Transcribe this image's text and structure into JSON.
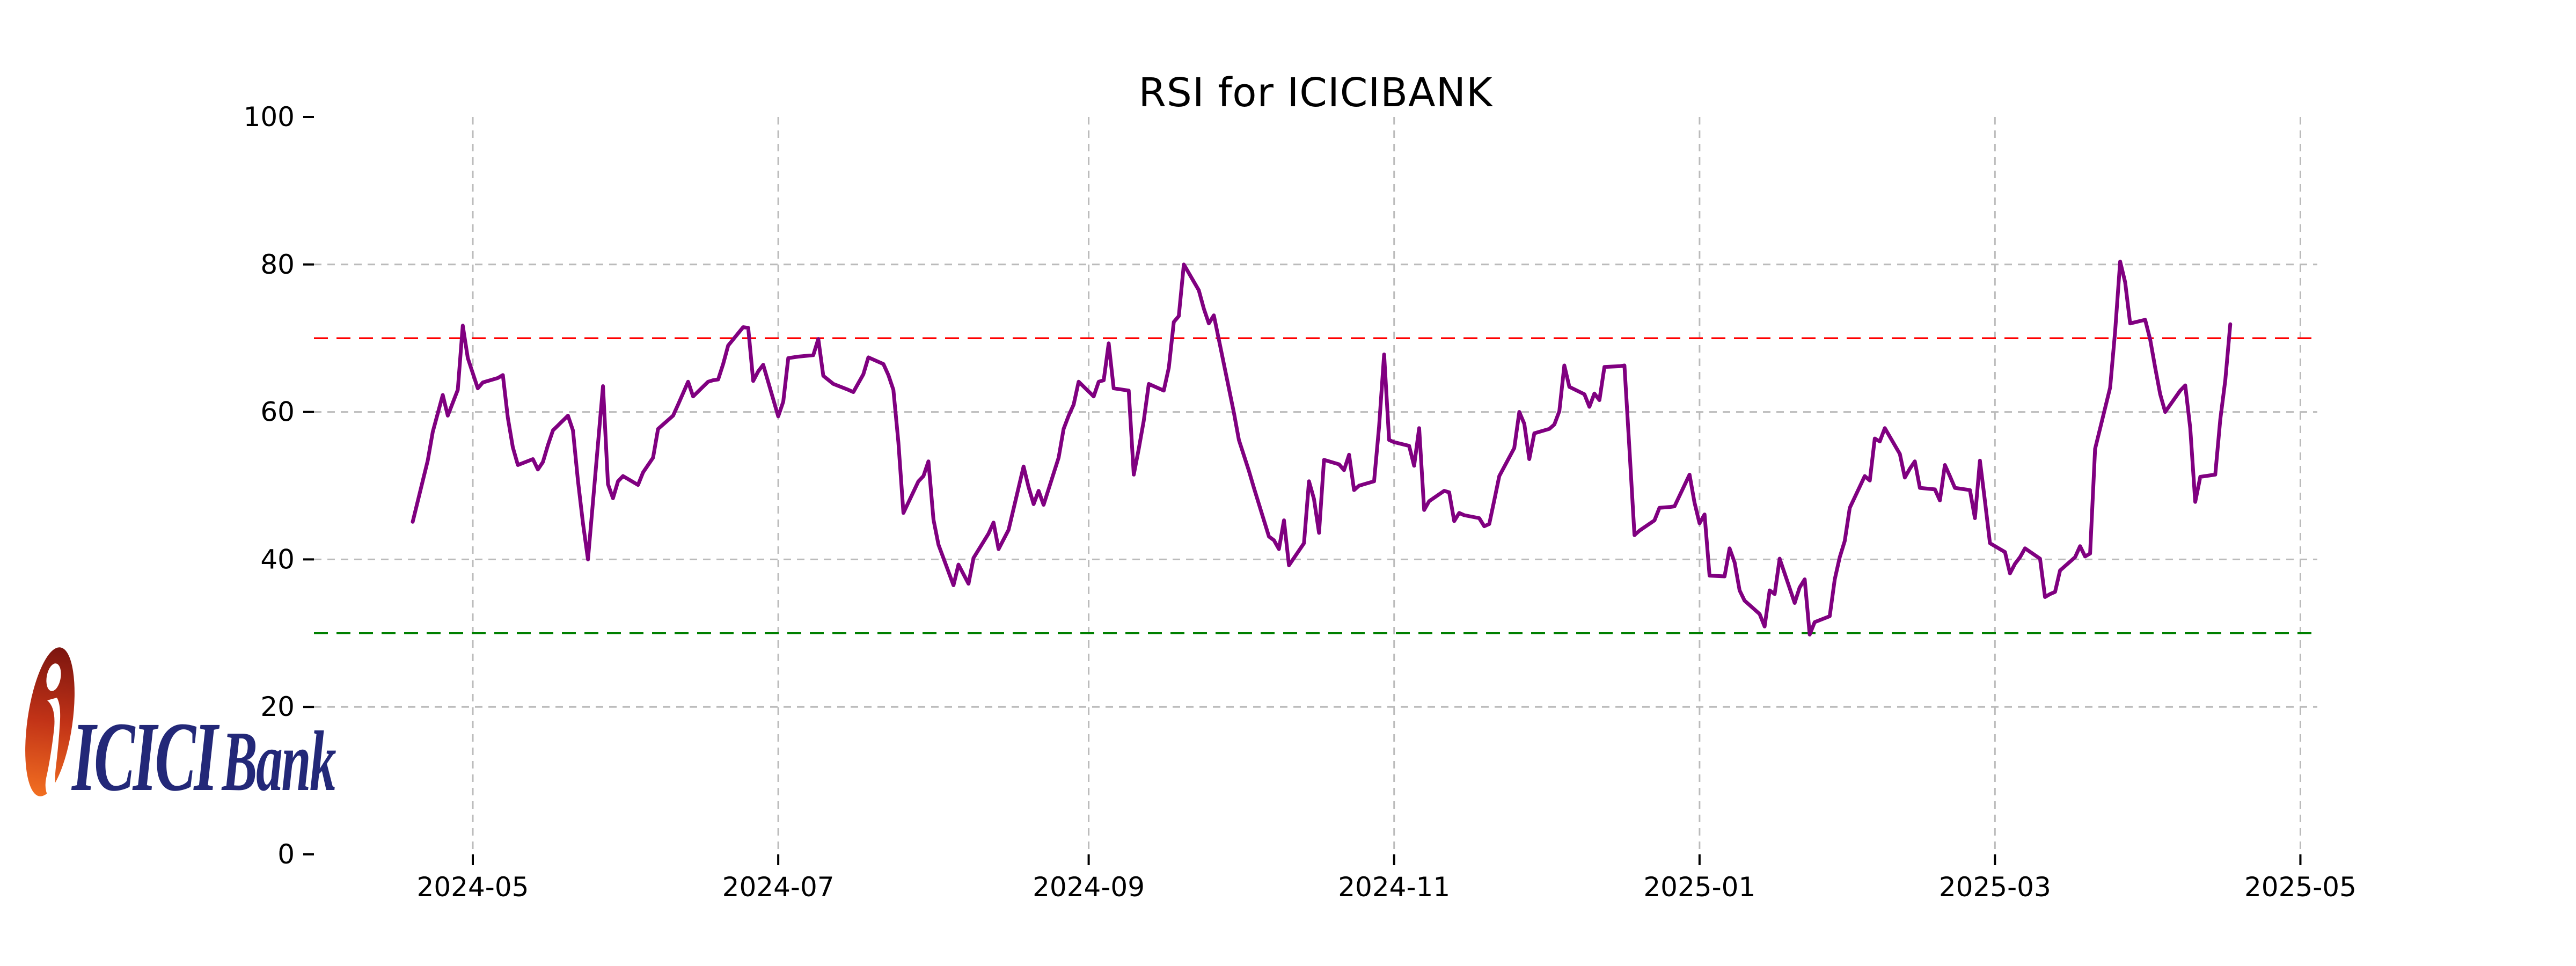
{
  "window": {
    "background": "#ffffff"
  },
  "logo": {
    "brand": "ICICI",
    "product": "Bank",
    "mark_color_top": "#7c150f",
    "mark_color_mid": "#c23317",
    "mark_color_bottom": "#f26f21",
    "text_color": "#232878"
  },
  "chart_data": {
    "type": "line",
    "title": "RSI for ICICIBANK",
    "xlabel": "",
    "ylabel": "",
    "ylim": [
      0,
      100
    ],
    "yticks": [
      0,
      20,
      40,
      60,
      80,
      100
    ],
    "xtick_labels": [
      "2024-05",
      "2024-07",
      "2024-09",
      "2024-11",
      "2025-01",
      "2025-03",
      "2025-05"
    ],
    "xtick_dates": [
      "2024-05-01",
      "2024-07-01",
      "2024-09-01",
      "2024-11-01",
      "2025-01-01",
      "2025-03-01",
      "2025-05-01"
    ],
    "grid": true,
    "gridline_yticks": [
      20,
      40,
      60,
      80
    ],
    "legend": "none",
    "line_color": "#800080",
    "overbought": {
      "value": 70,
      "color": "#ff0000",
      "style": "dashed"
    },
    "oversold": {
      "value": 30,
      "color": "#008000",
      "style": "dashed"
    },
    "gridline_color": "#bbbbbb",
    "series_name": "RSI",
    "points": [
      [
        "2024-04-19",
        45.1
      ],
      [
        "2024-04-22",
        53.4
      ],
      [
        "2024-04-23",
        57.3
      ],
      [
        "2024-04-25",
        62.3
      ],
      [
        "2024-04-26",
        59.5
      ],
      [
        "2024-04-28",
        63.0
      ],
      [
        "2024-04-29",
        71.7
      ],
      [
        "2024-04-30",
        67.3
      ],
      [
        "2024-05-02",
        63.2
      ],
      [
        "2024-05-03",
        64.0
      ],
      [
        "2024-05-06",
        64.6
      ],
      [
        "2024-05-07",
        65.0
      ],
      [
        "2024-05-08",
        59.2
      ],
      [
        "2024-05-09",
        55.2
      ],
      [
        "2024-05-10",
        52.8
      ],
      [
        "2024-05-13",
        53.6
      ],
      [
        "2024-05-14",
        52.2
      ],
      [
        "2024-05-15",
        53.2
      ],
      [
        "2024-05-16",
        55.5
      ],
      [
        "2024-05-17",
        57.5
      ],
      [
        "2024-05-20",
        59.5
      ],
      [
        "2024-05-21",
        57.5
      ],
      [
        "2024-05-22",
        50.7
      ],
      [
        "2024-05-23",
        44.9
      ],
      [
        "2024-05-24",
        40.0
      ],
      [
        "2024-05-27",
        63.5
      ],
      [
        "2024-05-28",
        50.2
      ],
      [
        "2024-05-29",
        48.3
      ],
      [
        "2024-05-30",
        50.6
      ],
      [
        "2024-05-31",
        51.3
      ],
      [
        "2024-06-03",
        50.1
      ],
      [
        "2024-06-04",
        51.8
      ],
      [
        "2024-06-06",
        53.8
      ],
      [
        "2024-06-07",
        57.7
      ],
      [
        "2024-06-10",
        59.5
      ],
      [
        "2024-06-11",
        61.0
      ],
      [
        "2024-06-13",
        64.1
      ],
      [
        "2024-06-14",
        62.1
      ],
      [
        "2024-06-17",
        64.1
      ],
      [
        "2024-06-18",
        64.3
      ],
      [
        "2024-06-19",
        64.4
      ],
      [
        "2024-06-20",
        66.5
      ],
      [
        "2024-06-21",
        69.0
      ],
      [
        "2024-06-24",
        71.5
      ],
      [
        "2024-06-25",
        71.4
      ],
      [
        "2024-06-26",
        64.2
      ],
      [
        "2024-06-27",
        65.5
      ],
      [
        "2024-06-28",
        66.4
      ],
      [
        "2024-07-01",
        59.4
      ],
      [
        "2024-07-02",
        61.4
      ],
      [
        "2024-07-03",
        67.3
      ],
      [
        "2024-07-05",
        67.5
      ],
      [
        "2024-07-08",
        67.7
      ],
      [
        "2024-07-09",
        69.9
      ],
      [
        "2024-07-10",
        64.9
      ],
      [
        "2024-07-12",
        63.8
      ],
      [
        "2024-07-15",
        63.0
      ],
      [
        "2024-07-16",
        62.7
      ],
      [
        "2024-07-18",
        65.1
      ],
      [
        "2024-07-19",
        67.4
      ],
      [
        "2024-07-22",
        66.5
      ],
      [
        "2024-07-23",
        65.0
      ],
      [
        "2024-07-24",
        63.0
      ],
      [
        "2024-07-25",
        55.9
      ],
      [
        "2024-07-26",
        46.3
      ],
      [
        "2024-07-29",
        50.6
      ],
      [
        "2024-07-30",
        51.3
      ],
      [
        "2024-07-31",
        53.3
      ],
      [
        "2024-08-01",
        45.4
      ],
      [
        "2024-08-02",
        42.0
      ],
      [
        "2024-08-05",
        36.5
      ],
      [
        "2024-08-06",
        39.3
      ],
      [
        "2024-08-07",
        38.0
      ],
      [
        "2024-08-08",
        36.7
      ],
      [
        "2024-08-09",
        40.2
      ],
      [
        "2024-08-12",
        43.5
      ],
      [
        "2024-08-13",
        45.0
      ],
      [
        "2024-08-14",
        41.4
      ],
      [
        "2024-08-16",
        44.0
      ],
      [
        "2024-08-19",
        52.6
      ],
      [
        "2024-08-20",
        49.8
      ],
      [
        "2024-08-21",
        47.5
      ],
      [
        "2024-08-22",
        49.3
      ],
      [
        "2024-08-23",
        47.4
      ],
      [
        "2024-08-26",
        53.8
      ],
      [
        "2024-08-27",
        57.7
      ],
      [
        "2024-08-28",
        59.5
      ],
      [
        "2024-08-29",
        61.0
      ],
      [
        "2024-08-30",
        64.1
      ],
      [
        "2024-09-02",
        62.1
      ],
      [
        "2024-09-03",
        64.1
      ],
      [
        "2024-09-04",
        64.3
      ],
      [
        "2024-09-05",
        69.3
      ],
      [
        "2024-09-06",
        63.2
      ],
      [
        "2024-09-09",
        62.9
      ],
      [
        "2024-09-10",
        51.5
      ],
      [
        "2024-09-11",
        55.0
      ],
      [
        "2024-09-12",
        58.8
      ],
      [
        "2024-09-13",
        63.8
      ],
      [
        "2024-09-16",
        62.9
      ],
      [
        "2024-09-17",
        66.0
      ],
      [
        "2024-09-18",
        72.2
      ],
      [
        "2024-09-19",
        73.0
      ],
      [
        "2024-09-20",
        80.0
      ],
      [
        "2024-09-23",
        76.5
      ],
      [
        "2024-09-24",
        74.0
      ],
      [
        "2024-09-25",
        72.0
      ],
      [
        "2024-09-26",
        73.1
      ],
      [
        "2024-09-27",
        69.8
      ],
      [
        "2024-09-30",
        59.9
      ],
      [
        "2024-10-01",
        56.2
      ],
      [
        "2024-10-03",
        52.0
      ],
      [
        "2024-10-04",
        49.7
      ],
      [
        "2024-10-07",
        43.1
      ],
      [
        "2024-10-08",
        42.6
      ],
      [
        "2024-10-09",
        41.4
      ],
      [
        "2024-10-10",
        45.3
      ],
      [
        "2024-10-11",
        39.2
      ],
      [
        "2024-10-14",
        42.2
      ],
      [
        "2024-10-15",
        50.6
      ],
      [
        "2024-10-16",
        48.2
      ],
      [
        "2024-10-17",
        43.6
      ],
      [
        "2024-10-18",
        53.5
      ],
      [
        "2024-10-21",
        52.9
      ],
      [
        "2024-10-22",
        52.1
      ],
      [
        "2024-10-23",
        54.2
      ],
      [
        "2024-10-24",
        49.4
      ],
      [
        "2024-10-25",
        50.0
      ],
      [
        "2024-10-28",
        50.6
      ],
      [
        "2024-10-29",
        58.0
      ],
      [
        "2024-10-30",
        67.8
      ],
      [
        "2024-10-31",
        56.2
      ],
      [
        "2024-11-01",
        55.9
      ],
      [
        "2024-11-04",
        55.4
      ],
      [
        "2024-11-05",
        52.7
      ],
      [
        "2024-11-06",
        57.8
      ],
      [
        "2024-11-07",
        46.7
      ],
      [
        "2024-11-08",
        47.9
      ],
      [
        "2024-11-11",
        49.3
      ],
      [
        "2024-11-12",
        49.1
      ],
      [
        "2024-11-13",
        45.2
      ],
      [
        "2024-11-14",
        46.3
      ],
      [
        "2024-11-15",
        46.0
      ],
      [
        "2024-11-18",
        45.6
      ],
      [
        "2024-11-19",
        44.5
      ],
      [
        "2024-11-20",
        44.8
      ],
      [
        "2024-11-21",
        48.0
      ],
      [
        "2024-11-22",
        51.3
      ],
      [
        "2024-11-25",
        55.1
      ],
      [
        "2024-11-26",
        60.0
      ],
      [
        "2024-11-27",
        58.4
      ],
      [
        "2024-11-28",
        53.6
      ],
      [
        "2024-11-29",
        57.1
      ],
      [
        "2024-12-02",
        57.7
      ],
      [
        "2024-12-03",
        58.3
      ],
      [
        "2024-12-04",
        60.1
      ],
      [
        "2024-12-05",
        66.3
      ],
      [
        "2024-12-06",
        63.4
      ],
      [
        "2024-12-09",
        62.4
      ],
      [
        "2024-12-10",
        60.7
      ],
      [
        "2024-12-11",
        62.5
      ],
      [
        "2024-12-12",
        61.6
      ],
      [
        "2024-12-13",
        66.1
      ],
      [
        "2024-12-16",
        66.2
      ],
      [
        "2024-12-17",
        66.3
      ],
      [
        "2024-12-18",
        55.0
      ],
      [
        "2024-12-19",
        43.3
      ],
      [
        "2024-12-20",
        43.9
      ],
      [
        "2024-12-23",
        45.3
      ],
      [
        "2024-12-24",
        47.0
      ],
      [
        "2024-12-26",
        47.1
      ],
      [
        "2024-12-27",
        47.2
      ],
      [
        "2024-12-30",
        51.5
      ],
      [
        "2024-12-31",
        47.7
      ],
      [
        "2025-01-01",
        44.9
      ],
      [
        "2025-01-02",
        46.1
      ],
      [
        "2025-01-03",
        37.8
      ],
      [
        "2025-01-06",
        37.7
      ],
      [
        "2025-01-07",
        41.5
      ],
      [
        "2025-01-08",
        39.6
      ],
      [
        "2025-01-09",
        35.8
      ],
      [
        "2025-01-10",
        34.4
      ],
      [
        "2025-01-13",
        32.6
      ],
      [
        "2025-01-14",
        30.9
      ],
      [
        "2025-01-15",
        35.8
      ],
      [
        "2025-01-16",
        35.3
      ],
      [
        "2025-01-17",
        40.1
      ],
      [
        "2025-01-20",
        34.1
      ],
      [
        "2025-01-21",
        36.2
      ],
      [
        "2025-01-22",
        37.3
      ],
      [
        "2025-01-23",
        29.8
      ],
      [
        "2025-01-24",
        31.5
      ],
      [
        "2025-01-27",
        32.3
      ],
      [
        "2025-01-28",
        37.3
      ],
      [
        "2025-01-29",
        40.3
      ],
      [
        "2025-01-30",
        42.5
      ],
      [
        "2025-01-31",
        47.0
      ],
      [
        "2025-02-03",
        51.3
      ],
      [
        "2025-02-04",
        50.7
      ],
      [
        "2025-02-05",
        56.4
      ],
      [
        "2025-02-06",
        56.0
      ],
      [
        "2025-02-07",
        57.8
      ],
      [
        "2025-02-10",
        54.3
      ],
      [
        "2025-02-11",
        51.1
      ],
      [
        "2025-02-12",
        52.3
      ],
      [
        "2025-02-13",
        53.3
      ],
      [
        "2025-02-14",
        49.7
      ],
      [
        "2025-02-17",
        49.5
      ],
      [
        "2025-02-18",
        48.0
      ],
      [
        "2025-02-19",
        52.8
      ],
      [
        "2025-02-20",
        51.3
      ],
      [
        "2025-02-21",
        49.7
      ],
      [
        "2025-02-24",
        49.4
      ],
      [
        "2025-02-25",
        45.6
      ],
      [
        "2025-02-26",
        53.4
      ],
      [
        "2025-02-27",
        47.9
      ],
      [
        "2025-02-28",
        42.2
      ],
      [
        "2025-03-03",
        41.0
      ],
      [
        "2025-03-04",
        38.1
      ],
      [
        "2025-03-05",
        39.4
      ],
      [
        "2025-03-06",
        40.3
      ],
      [
        "2025-03-07",
        41.5
      ],
      [
        "2025-03-10",
        40.1
      ],
      [
        "2025-03-11",
        34.9
      ],
      [
        "2025-03-12",
        35.3
      ],
      [
        "2025-03-13",
        35.6
      ],
      [
        "2025-03-14",
        38.5
      ],
      [
        "2025-03-17",
        40.3
      ],
      [
        "2025-03-18",
        41.8
      ],
      [
        "2025-03-19",
        40.4
      ],
      [
        "2025-03-20",
        40.8
      ],
      [
        "2025-03-21",
        55.0
      ],
      [
        "2025-03-24",
        63.3
      ],
      [
        "2025-03-25",
        70.9
      ],
      [
        "2025-03-26",
        80.4
      ],
      [
        "2025-03-27",
        77.6
      ],
      [
        "2025-03-28",
        72.0
      ],
      [
        "2025-03-31",
        72.5
      ],
      [
        "2025-04-01",
        69.8
      ],
      [
        "2025-04-02",
        66.0
      ],
      [
        "2025-04-03",
        62.4
      ],
      [
        "2025-04-04",
        60.0
      ],
      [
        "2025-04-07",
        62.9
      ],
      [
        "2025-04-08",
        63.6
      ],
      [
        "2025-04-09",
        57.8
      ],
      [
        "2025-04-10",
        47.8
      ],
      [
        "2025-04-11",
        51.2
      ],
      [
        "2025-04-14",
        51.5
      ],
      [
        "2025-04-15",
        59.0
      ],
      [
        "2025-04-16",
        64.3
      ],
      [
        "2025-04-17",
        71.9
      ]
    ]
  }
}
